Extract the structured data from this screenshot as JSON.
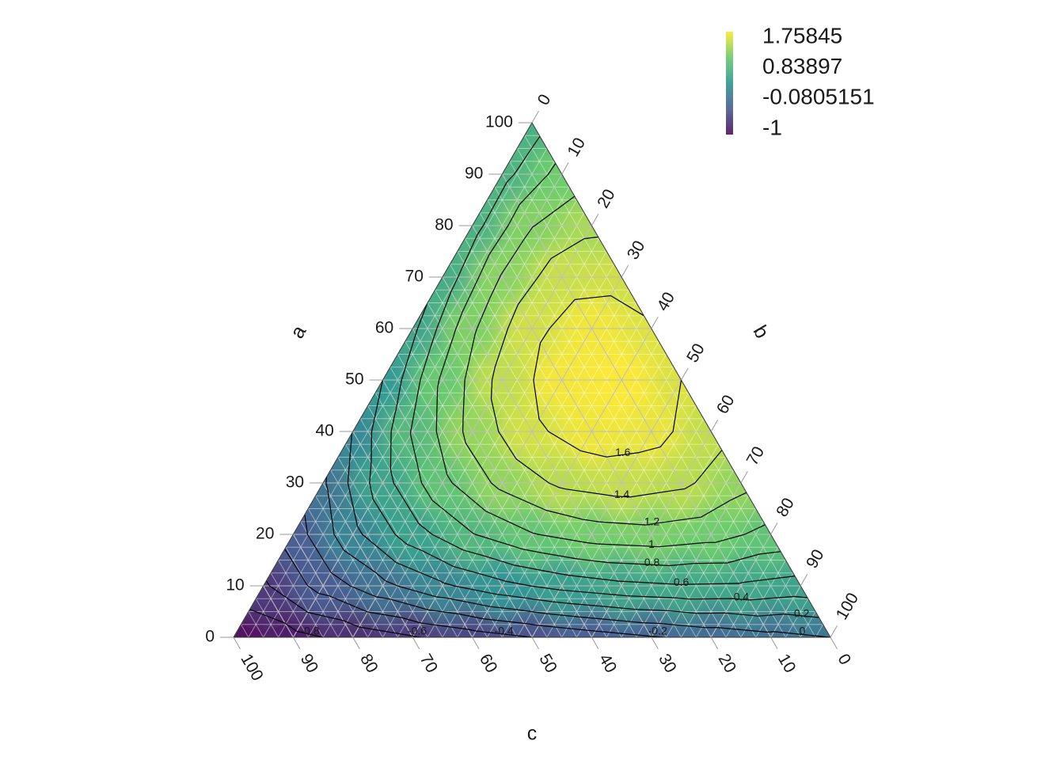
{
  "chart_data": {
    "type": "ternary_contour",
    "axes": [
      {
        "title": "a",
        "lim": [
          0,
          100
        ],
        "ticks": [
          0,
          10,
          20,
          30,
          40,
          50,
          60,
          70,
          80,
          90,
          100
        ]
      },
      {
        "title": "b",
        "lim": [
          0,
          100
        ],
        "ticks": [
          0,
          10,
          20,
          30,
          40,
          50,
          60,
          70,
          80,
          90,
          100
        ]
      },
      {
        "title": "c",
        "lim": [
          0,
          100
        ],
        "ticks": [
          0,
          10,
          20,
          30,
          40,
          50,
          60,
          70,
          80,
          90,
          100
        ]
      }
    ],
    "field": [
      [
        -1,
        -0.864,
        -0.736,
        -0.616,
        -0.504,
        -0.4,
        -0.304,
        -0.216,
        -0.136,
        -0.064,
        0
      ],
      [
        -0.632,
        -0.32,
        -0.054,
        0.166,
        0.34,
        0.468,
        0.55,
        0.586,
        0.576,
        0.52
      ],
      [
        -0.308,
        0.142,
        0.508,
        0.79,
        0.988,
        1.102,
        1.132,
        1.078,
        0.94
      ],
      [
        -0.028,
        0.522,
        0.95,
        1.256,
        1.44,
        1.502,
        1.442,
        1.26
      ],
      [
        0.208,
        0.82,
        1.272,
        1.564,
        1.696,
        1.668,
        1.48
      ],
      [
        0.4,
        1.036,
        1.474,
        1.714,
        1.756,
        1.6
      ],
      [
        0.548,
        1.17,
        1.556,
        1.706,
        1.62
      ],
      [
        0.652,
        1.222,
        1.518,
        1.54
      ],
      [
        0.712,
        1.192,
        1.36
      ],
      [
        0.728,
        1.08
      ],
      [
        0.7
      ]
    ],
    "zlim": [
      -1,
      1.75845
    ],
    "colormap": [
      "#440154",
      "#3b528b",
      "#21918c",
      "#5ec962",
      "#fde725"
    ],
    "legend_ticks": [
      1.75845,
      0.83897,
      -0.0805151,
      -1
    ],
    "contour_levels": [
      -0.8,
      -0.6,
      -0.4,
      -0.2,
      0,
      0.2,
      0.4,
      0.6,
      0.8,
      1,
      1.2,
      1.4,
      1.6
    ],
    "contour_color": "#000000"
  }
}
